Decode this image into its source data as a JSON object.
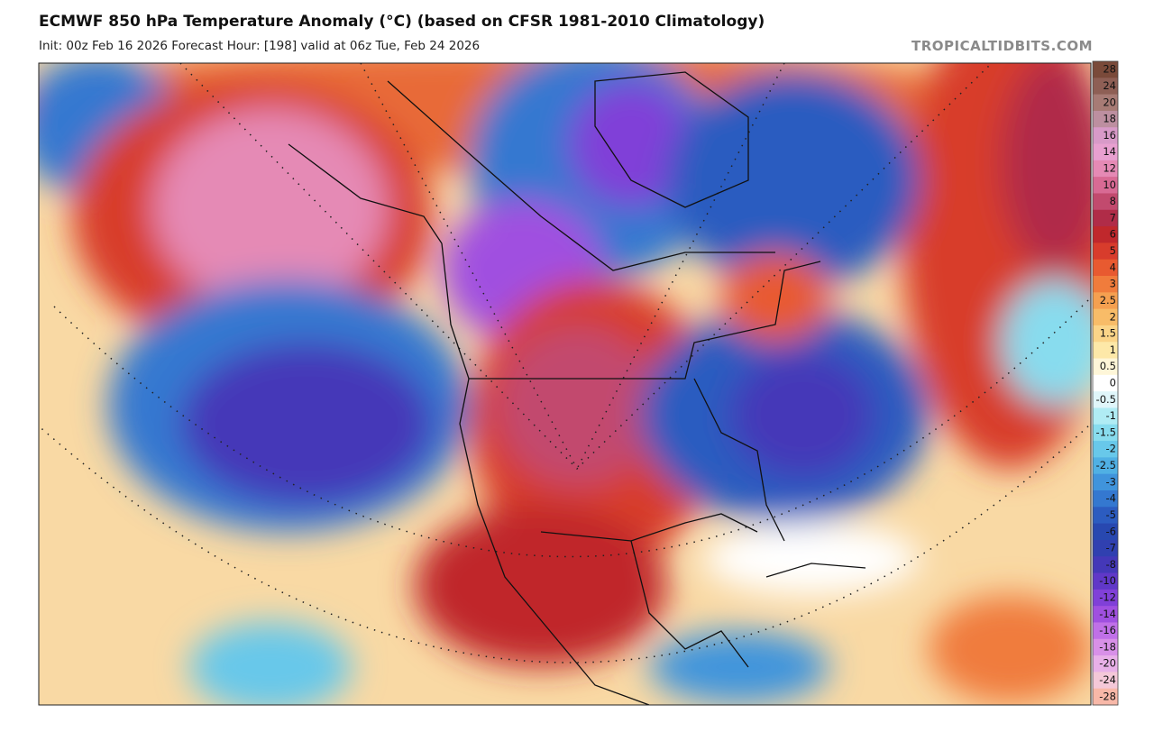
{
  "header": {
    "title": "ECMWF 850 hPa Temperature Anomaly (°C) (based on CFSR 1981-2010 Climatology)",
    "subtitle": "Init: 00z Feb 16 2026   Forecast Hour: [198]   valid at 06z Tue, Feb 24 2026",
    "site": "TROPICALTIDBITS.COM"
  },
  "legend": {
    "levels": [
      {
        "value": 28,
        "color": "#7a4a3a"
      },
      {
        "value": 24,
        "color": "#8e5f55"
      },
      {
        "value": 20,
        "color": "#a77b75"
      },
      {
        "value": 18,
        "color": "#bd8fa0"
      },
      {
        "value": 16,
        "color": "#d89ac8"
      },
      {
        "value": 14,
        "color": "#e8a0d0"
      },
      {
        "value": 12,
        "color": "#e58ab5"
      },
      {
        "value": 10,
        "color": "#d86a94"
      },
      {
        "value": 8,
        "color": "#c24a6e"
      },
      {
        "value": 7,
        "color": "#b02c48"
      },
      {
        "value": 6,
        "color": "#c0282c"
      },
      {
        "value": 5,
        "color": "#d83c2c"
      },
      {
        "value": 4,
        "color": "#e85a30"
      },
      {
        "value": 3,
        "color": "#f07c3c"
      },
      {
        "value": 2.5,
        "color": "#f5a050"
      },
      {
        "value": 2,
        "color": "#f8bc68"
      },
      {
        "value": 1.5,
        "color": "#fbd488"
      },
      {
        "value": 1,
        "color": "#fde8a8"
      },
      {
        "value": 0.5,
        "color": "#fef6d8"
      },
      {
        "value": 0,
        "color": "#ffffff"
      },
      {
        "value": -0.5,
        "color": "#e0f6fa"
      },
      {
        "value": -1,
        "color": "#b0ecf4"
      },
      {
        "value": -1.5,
        "color": "#88dcee"
      },
      {
        "value": -2,
        "color": "#68c8ea"
      },
      {
        "value": -2.5,
        "color": "#50b0e4"
      },
      {
        "value": -3,
        "color": "#4094dc"
      },
      {
        "value": -4,
        "color": "#3478d0"
      },
      {
        "value": -5,
        "color": "#2c5cc0"
      },
      {
        "value": -6,
        "color": "#2848b0"
      },
      {
        "value": -7,
        "color": "#3040b0"
      },
      {
        "value": -8,
        "color": "#4438b8"
      },
      {
        "value": -10,
        "color": "#6038c8"
      },
      {
        "value": -12,
        "color": "#8040d8"
      },
      {
        "value": -14,
        "color": "#a050e0"
      },
      {
        "value": -16,
        "color": "#c070e8"
      },
      {
        "value": -18,
        "color": "#d890e8"
      },
      {
        "value": -20,
        "color": "#e8b0e8"
      },
      {
        "value": -24,
        "color": "#f4c8d8"
      },
      {
        "value": -28,
        "color": "#f8b8a8"
      }
    ]
  }
}
